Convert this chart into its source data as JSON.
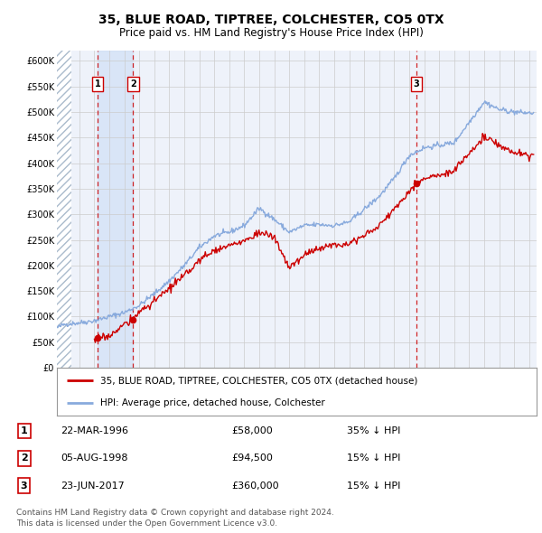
{
  "title": "35, BLUE ROAD, TIPTREE, COLCHESTER, CO5 0TX",
  "subtitle": "Price paid vs. HM Land Registry's House Price Index (HPI)",
  "legend_line1": "35, BLUE ROAD, TIPTREE, COLCHESTER, CO5 0TX (detached house)",
  "legend_line2": "HPI: Average price, detached house, Colchester",
  "footer1": "Contains HM Land Registry data © Crown copyright and database right 2024.",
  "footer2": "This data is licensed under the Open Government Licence v3.0.",
  "sales": [
    {
      "label": "1",
      "date": "22-MAR-1996",
      "price": 58000,
      "note": "35% ↓ HPI",
      "x": 1996.22
    },
    {
      "label": "2",
      "date": "05-AUG-1998",
      "price": 94500,
      "note": "15% ↓ HPI",
      "x": 1998.59
    },
    {
      "label": "3",
      "date": "23-JUN-2017",
      "price": 360000,
      "note": "15% ↓ HPI",
      "x": 2017.47
    }
  ],
  "ylim": [
    0,
    620000
  ],
  "xlim": [
    1993.5,
    2025.5
  ],
  "yticks": [
    0,
    50000,
    100000,
    150000,
    200000,
    250000,
    300000,
    350000,
    400000,
    450000,
    500000,
    550000,
    600000
  ],
  "ytick_labels": [
    "£0",
    "£50K",
    "£100K",
    "£150K",
    "£200K",
    "£250K",
    "£300K",
    "£350K",
    "£400K",
    "£450K",
    "£500K",
    "£550K",
    "£600K"
  ],
  "xticks": [
    1994,
    1995,
    1996,
    1997,
    1998,
    1999,
    2000,
    2001,
    2002,
    2003,
    2004,
    2005,
    2006,
    2007,
    2008,
    2009,
    2010,
    2011,
    2012,
    2013,
    2014,
    2015,
    2016,
    2017,
    2018,
    2019,
    2020,
    2021,
    2022,
    2023,
    2024,
    2025
  ],
  "hpi_color": "#88aadd",
  "price_color": "#cc0000",
  "sale_dot_color": "#cc0000",
  "vline_color": "#cc0000",
  "grid_color": "#cccccc",
  "bg_color": "#eef2fa",
  "hatch_edge_color": "#aabbcc"
}
